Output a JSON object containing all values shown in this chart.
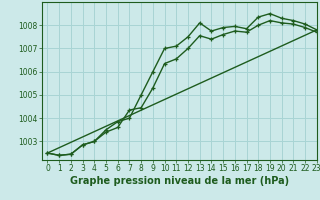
{
  "xlabel": "Graphe pression niveau de la mer (hPa)",
  "background_color": "#cce9e9",
  "grid_color": "#a8d4d4",
  "line_color": "#1e5c1e",
  "xlim": [
    -0.5,
    23
  ],
  "ylim": [
    1002.2,
    1009.0
  ],
  "yticks": [
    1003,
    1004,
    1005,
    1006,
    1007,
    1008
  ],
  "xticks": [
    0,
    1,
    2,
    3,
    4,
    5,
    6,
    7,
    8,
    9,
    10,
    11,
    12,
    13,
    14,
    15,
    16,
    17,
    18,
    19,
    20,
    21,
    22,
    23
  ],
  "series1_x": [
    0,
    1,
    2,
    3,
    4,
    5,
    6,
    7,
    8,
    9,
    10,
    11,
    12,
    13,
    14,
    15,
    16,
    17,
    18,
    19,
    20,
    21,
    22,
    23
  ],
  "series1_y": [
    1002.5,
    1002.4,
    1002.45,
    1002.85,
    1003.0,
    1003.5,
    1003.85,
    1004.0,
    1005.0,
    1006.0,
    1007.0,
    1007.1,
    1007.5,
    1008.1,
    1007.75,
    1007.9,
    1007.95,
    1007.85,
    1008.35,
    1008.5,
    1008.3,
    1008.2,
    1008.05,
    1007.8
  ],
  "series2_x": [
    0,
    1,
    2,
    3,
    4,
    5,
    6,
    7,
    8,
    9,
    10,
    11,
    12,
    13,
    14,
    15,
    16,
    17,
    18,
    19,
    20,
    21,
    22,
    23
  ],
  "series2_y": [
    1002.5,
    1002.4,
    1002.45,
    1002.85,
    1003.0,
    1003.4,
    1003.6,
    1004.35,
    1004.45,
    1005.3,
    1006.35,
    1006.55,
    1007.0,
    1007.55,
    1007.4,
    1007.6,
    1007.75,
    1007.7,
    1008.0,
    1008.2,
    1008.1,
    1008.05,
    1007.9,
    1007.7
  ],
  "series3_x": [
    0,
    23
  ],
  "series3_y": [
    1002.5,
    1007.8
  ],
  "line_width": 1.0,
  "marker_size": 3.5,
  "tick_fontsize": 5.5,
  "xlabel_fontsize": 7,
  "xlabel_fontweight": "bold"
}
